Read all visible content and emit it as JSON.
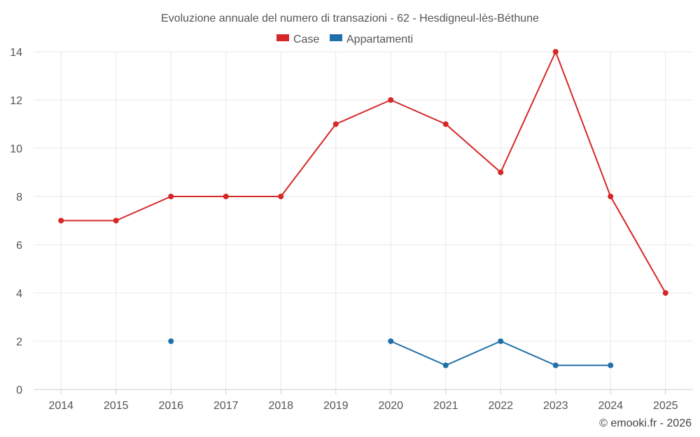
{
  "chart_data": {
    "type": "line",
    "title": "Evoluzione annuale del numero di transazioni - 62 - Hesdigneul-lès-Béthune",
    "categories": [
      "2014",
      "2015",
      "2016",
      "2017",
      "2018",
      "2019",
      "2020",
      "2021",
      "2022",
      "2023",
      "2024",
      "2025"
    ],
    "ylim": [
      0,
      14
    ],
    "yticks": [
      0,
      2,
      4,
      6,
      8,
      10,
      12,
      14
    ],
    "ytick_labels": [
      "0",
      "2",
      "4",
      "6",
      "8",
      "10",
      "12",
      "14"
    ],
    "grid": true,
    "legend_position": "top-center",
    "series": [
      {
        "name": "Case",
        "color": "#d62728",
        "values": [
          7,
          7,
          8,
          8,
          8,
          11,
          12,
          11,
          9,
          14,
          8,
          4
        ]
      },
      {
        "name": "Appartamenti",
        "color": "#1f6fa8",
        "values": [
          null,
          null,
          2,
          null,
          null,
          null,
          2,
          1,
          2,
          1,
          1,
          null
        ]
      }
    ]
  },
  "credit": "© emooki.fr - 2026"
}
